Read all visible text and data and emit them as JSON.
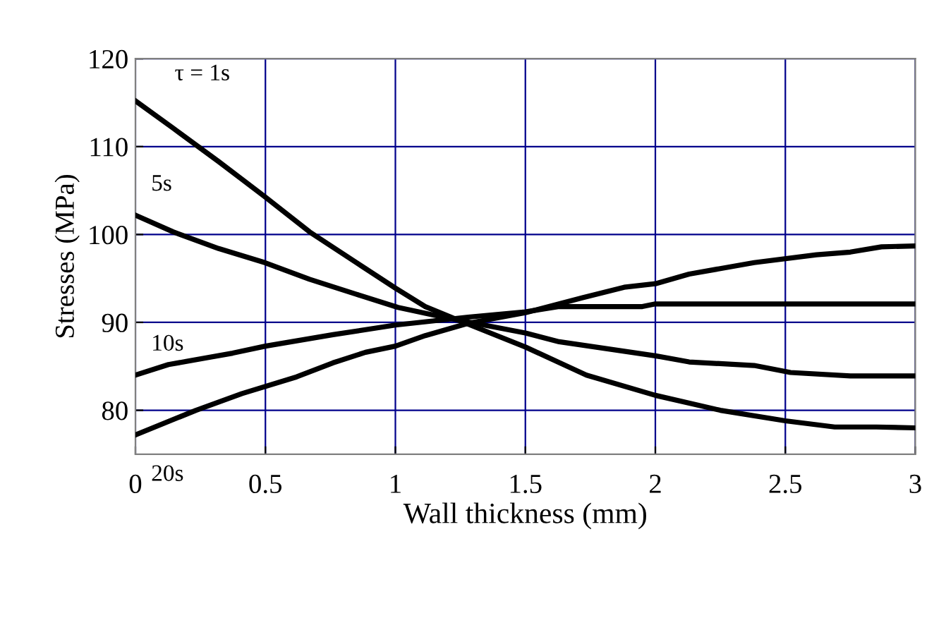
{
  "chart_data": {
    "type": "line",
    "xlabel": "Wall thickness (mm)",
    "ylabel": "Stresses (MPa)",
    "xlim": [
      0,
      3
    ],
    "ylim": [
      75,
      120
    ],
    "xticks": [
      0,
      0.5,
      1,
      1.5,
      2,
      2.5,
      3
    ],
    "yticks": [
      80,
      90,
      100,
      110,
      120
    ],
    "grid": true,
    "legend": false,
    "marker": "none",
    "line_style": "solid",
    "series": [
      {
        "name": "τ = 1s",
        "color": "#000000",
        "x": [
          0,
          0.145,
          0.32,
          0.498,
          0.67,
          0.85,
          1.0,
          1.115,
          1.28,
          1.5,
          1.735,
          2.0,
          2.25,
          2.5,
          2.69,
          2.85,
          3
        ],
        "values": [
          115.2,
          112.1,
          108.3,
          104.3,
          100.3,
          96.8,
          93.9,
          91.8,
          89.8,
          87.2,
          84.0,
          81.7,
          80.0,
          78.8,
          78.1,
          78.1,
          78.0
        ]
      },
      {
        "name": "5s",
        "color": "#000000",
        "x": [
          0,
          0.145,
          0.32,
          0.498,
          0.67,
          0.85,
          1.01,
          1.2,
          1.5,
          1.63,
          2.0,
          2.13,
          2.38,
          2.52,
          2.75,
          3
        ],
        "values": [
          102.2,
          100.3,
          98.4,
          96.8,
          94.9,
          93.2,
          91.7,
          90.5,
          88.8,
          87.8,
          86.2,
          85.5,
          85.1,
          84.3,
          83.9,
          83.9
        ]
      },
      {
        "name": "10s",
        "color": "#000000",
        "x": [
          0,
          0.127,
          0.374,
          0.5,
          0.76,
          1.0,
          1.28,
          1.5,
          1.63,
          1.95,
          2.0,
          3
        ],
        "values": [
          84.0,
          85.2,
          86.5,
          87.3,
          88.6,
          89.7,
          90.6,
          91.2,
          91.8,
          91.8,
          92.1,
          92.1
        ]
      },
      {
        "name": "20s",
        "color": "#000000",
        "x": [
          0,
          0.233,
          0.41,
          0.62,
          0.76,
          0.885,
          1.0,
          1.115,
          1.28,
          1.5,
          1.72,
          1.88,
          2.0,
          2.13,
          2.38,
          2.62,
          2.75,
          2.87,
          3
        ],
        "values": [
          77.2,
          80.0,
          81.9,
          83.8,
          85.4,
          86.6,
          87.3,
          88.5,
          89.9,
          91.1,
          92.8,
          94.0,
          94.4,
          95.5,
          96.8,
          97.7,
          98.0,
          98.6,
          98.7
        ]
      }
    ]
  }
}
